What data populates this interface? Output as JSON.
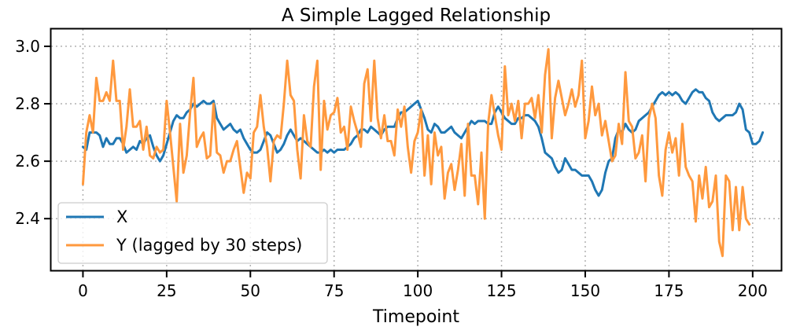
{
  "chart_data": {
    "type": "line",
    "title": "A Simple Lagged Relationship",
    "xlabel": "Timepoint",
    "ylabel": "",
    "xlim": [
      -9.5,
      208.5
    ],
    "ylim": [
      2.22,
      3.06
    ],
    "xticks": [
      0,
      25,
      50,
      75,
      100,
      125,
      150,
      175,
      200
    ],
    "yticks": [
      2.4,
      2.6,
      2.8,
      3.0
    ],
    "ytick_labels": [
      "2.4",
      "2.6",
      "2.8",
      "3.0"
    ],
    "grid": true,
    "legend_position": "lower-left",
    "series": [
      {
        "name": "X",
        "color": "#1f77b4",
        "values": [
          2.65,
          2.64,
          2.7,
          2.7,
          2.7,
          2.69,
          2.65,
          2.68,
          2.66,
          2.66,
          2.68,
          2.68,
          2.66,
          2.63,
          2.64,
          2.65,
          2.64,
          2.67,
          2.66,
          2.68,
          2.69,
          2.65,
          2.62,
          2.6,
          2.62,
          2.66,
          2.7,
          2.74,
          2.76,
          2.75,
          2.75,
          2.77,
          2.78,
          2.8,
          2.79,
          2.8,
          2.81,
          2.8,
          2.8,
          2.81,
          2.75,
          2.73,
          2.71,
          2.72,
          2.73,
          2.71,
          2.7,
          2.71,
          2.68,
          2.66,
          2.64,
          2.63,
          2.63,
          2.64,
          2.67,
          2.7,
          2.69,
          2.66,
          2.63,
          2.64,
          2.66,
          2.69,
          2.71,
          2.69,
          2.67,
          2.68,
          2.67,
          2.66,
          2.65,
          2.64,
          2.63,
          2.63,
          2.64,
          2.63,
          2.64,
          2.63,
          2.64,
          2.64,
          2.64,
          2.65,
          2.66,
          2.68,
          2.69,
          2.71,
          2.71,
          2.7,
          2.72,
          2.71,
          2.7,
          2.69,
          2.71,
          2.72,
          2.72,
          2.72,
          2.75,
          2.77,
          2.77,
          2.78,
          2.79,
          2.8,
          2.81,
          2.78,
          2.75,
          2.71,
          2.7,
          2.73,
          2.72,
          2.7,
          2.7,
          2.71,
          2.72,
          2.7,
          2.69,
          2.68,
          2.7,
          2.72,
          2.74,
          2.73,
          2.74,
          2.74,
          2.74,
          2.73,
          2.73,
          2.77,
          2.79,
          2.77,
          2.75,
          2.74,
          2.73,
          2.73,
          2.75,
          2.75,
          2.76,
          2.76,
          2.75,
          2.74,
          2.72,
          2.68,
          2.63,
          2.62,
          2.61,
          2.58,
          2.56,
          2.57,
          2.61,
          2.59,
          2.57,
          2.57,
          2.56,
          2.55,
          2.55,
          2.55,
          2.53,
          2.5,
          2.48,
          2.5,
          2.56,
          2.6,
          2.61,
          2.68,
          2.71,
          2.7,
          2.73,
          2.71,
          2.7,
          2.71,
          2.74,
          2.75,
          2.76,
          2.77,
          2.79,
          2.81,
          2.83,
          2.84,
          2.83,
          2.84,
          2.83,
          2.84,
          2.83,
          2.81,
          2.8,
          2.82,
          2.84,
          2.85,
          2.84,
          2.84,
          2.82,
          2.81,
          2.77,
          2.75,
          2.74,
          2.75,
          2.76,
          2.76,
          2.76,
          2.77,
          2.8,
          2.78,
          2.71,
          2.7,
          2.66,
          2.66,
          2.67,
          2.7
        ]
      },
      {
        "name": "Y (lagged by 30 steps)",
        "color": "#ff993e",
        "values": [
          2.52,
          2.7,
          2.76,
          2.7,
          2.89,
          2.81,
          2.81,
          2.84,
          2.81,
          2.95,
          2.81,
          2.81,
          2.64,
          2.72,
          2.85,
          2.72,
          2.72,
          2.74,
          2.64,
          2.72,
          2.62,
          2.61,
          2.65,
          2.63,
          2.64,
          2.81,
          2.7,
          2.58,
          2.46,
          2.73,
          2.56,
          2.62,
          2.77,
          2.89,
          2.65,
          2.68,
          2.7,
          2.61,
          2.62,
          2.8,
          2.63,
          2.62,
          2.56,
          2.6,
          2.6,
          2.64,
          2.67,
          2.58,
          2.49,
          2.56,
          2.54,
          2.7,
          2.72,
          2.83,
          2.72,
          2.65,
          2.53,
          2.67,
          2.69,
          2.68,
          2.8,
          2.95,
          2.83,
          2.81,
          2.64,
          2.54,
          2.76,
          2.67,
          2.65,
          2.86,
          2.95,
          2.57,
          2.81,
          2.71,
          2.76,
          2.77,
          2.82,
          2.7,
          2.72,
          2.64,
          2.79,
          2.74,
          2.7,
          2.65,
          2.87,
          2.92,
          2.74,
          2.95,
          2.75,
          2.68,
          2.76,
          2.67,
          2.67,
          2.62,
          2.78,
          2.72,
          2.79,
          2.65,
          2.56,
          2.67,
          2.7,
          2.78,
          2.55,
          2.69,
          2.52,
          2.7,
          2.62,
          2.65,
          2.47,
          2.56,
          2.59,
          2.5,
          2.57,
          2.66,
          2.48,
          2.73,
          2.55,
          2.55,
          2.45,
          2.63,
          2.4,
          2.73,
          2.83,
          2.76,
          2.69,
          2.64,
          2.93,
          2.76,
          2.8,
          2.74,
          2.81,
          2.68,
          2.8,
          2.8,
          2.82,
          2.75,
          2.83,
          2.7,
          2.9,
          2.99,
          2.68,
          2.82,
          2.88,
          2.82,
          2.76,
          2.8,
          2.85,
          2.79,
          2.83,
          2.95,
          2.68,
          2.74,
          2.86,
          2.76,
          2.8,
          2.69,
          2.74,
          2.67,
          2.6,
          2.62,
          2.73,
          2.66,
          2.91,
          2.74,
          2.72,
          2.61,
          2.63,
          2.69,
          2.53,
          2.75,
          2.8,
          2.75,
          2.55,
          2.48,
          2.64,
          2.7,
          2.63,
          2.68,
          2.55,
          2.73,
          2.58,
          2.55,
          2.53,
          2.39,
          2.55,
          2.47,
          2.58,
          2.44,
          2.46,
          2.55,
          2.32,
          2.27,
          2.55,
          2.53,
          2.36,
          2.51,
          2.36,
          2.51,
          2.4,
          2.38
        ]
      }
    ]
  }
}
